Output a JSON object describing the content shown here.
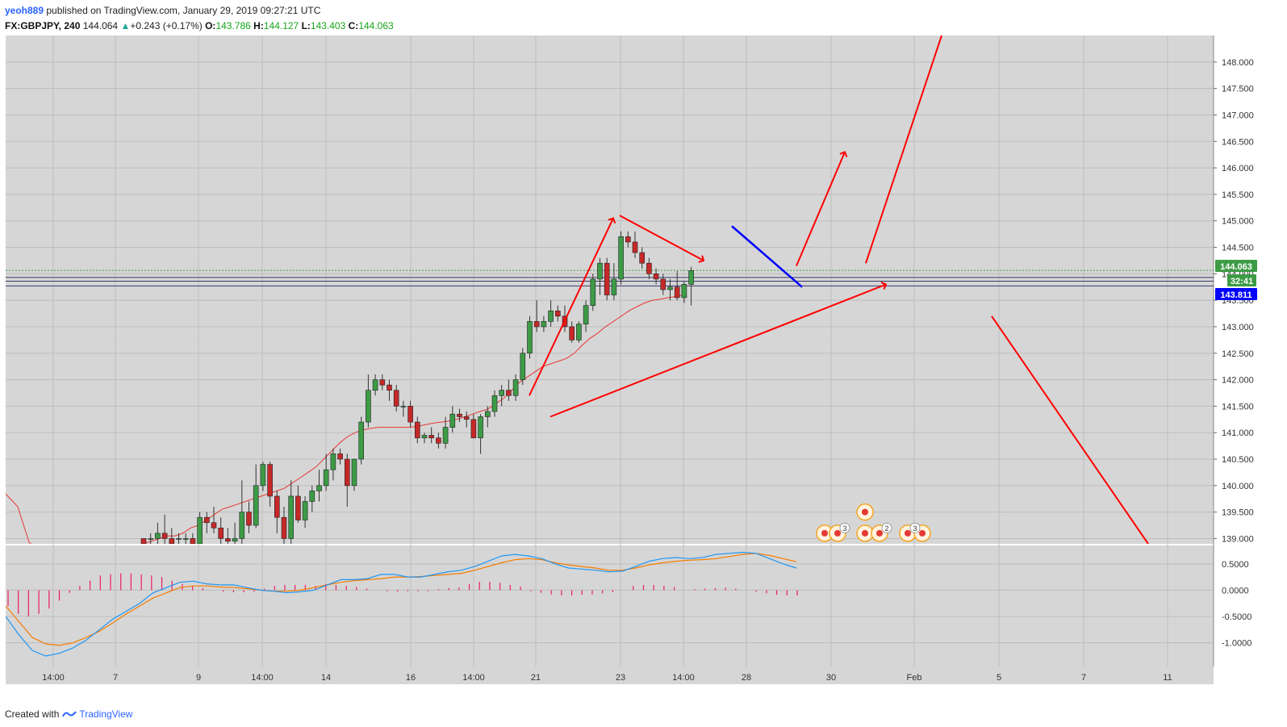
{
  "header": {
    "author": "yeoh889",
    "published_text": "published on TradingView.com, January 29, 2019 09:27:21 UTC",
    "symbol": "FX:GBPJPY, 240",
    "last": "144.064",
    "change": "+0.243 (+0.17%)",
    "o_label": "O:",
    "o_value": "143.786",
    "h_label": "H:",
    "h_value": "144.127",
    "l_label": "L:",
    "l_value": "143.403",
    "c_label": "C:",
    "c_value": "144.063"
  },
  "footer": {
    "created_with": "Created with",
    "brand": "TradingView"
  },
  "colors": {
    "background": "#d6d6d6",
    "grid": "#bdbdbd",
    "up_candle": "#3d9b46",
    "down_candle": "#c62828",
    "annotation_red": "#ff0000",
    "trendline_blue": "#0000ff",
    "ma_line": "#e53935",
    "macd_line": "#2196f3",
    "signal_line": "#f57c00",
    "histogram": "#e91e63",
    "price_badge": "#3d9b46",
    "blue_badge": "#0000ff"
  },
  "chart_data": {
    "type": "candlestick",
    "symbol": "FX:GBPJPY",
    "timeframe": "240",
    "y_ticks": [
      "148.000",
      "147.500",
      "147.000",
      "146.500",
      "146.000",
      "145.500",
      "145.000",
      "144.500",
      "144.000",
      "143.500",
      "143.000",
      "142.500",
      "142.000",
      "141.500",
      "141.000",
      "140.500",
      "140.000",
      "139.500",
      "139.000"
    ],
    "ylim": [
      138.9,
      148.5
    ],
    "x_ticks": [
      "14:00",
      "7",
      "9",
      "14:00",
      "14",
      "16",
      "14:00",
      "21",
      "23",
      "14:00",
      "28",
      "30",
      "Feb",
      "5",
      "7",
      "11"
    ],
    "price_badges": [
      {
        "label": "144.063",
        "value": 144.063
      },
      {
        "label": "32:41",
        "value": 143.85
      },
      {
        "label": "143.811",
        "value": 143.811
      }
    ],
    "horizontal_lines": [
      143.93,
      143.86,
      143.77
    ],
    "current_price_line": 144.063,
    "candles": [
      [
        139.0,
        139.0,
        138.9,
        138.9
      ],
      [
        139.0,
        139.1,
        138.9,
        139.0
      ],
      [
        139.0,
        139.3,
        138.9,
        139.1
      ],
      [
        139.1,
        139.45,
        138.9,
        139.0
      ],
      [
        139.0,
        139.2,
        138.9,
        138.9
      ],
      [
        139.0,
        139.1,
        138.9,
        139.0
      ],
      [
        139.0,
        139.1,
        138.9,
        139.0
      ],
      [
        139.0,
        139.1,
        138.9,
        138.9
      ],
      [
        138.9,
        139.5,
        138.9,
        139.4
      ],
      [
        139.4,
        139.5,
        139.1,
        139.3
      ],
      [
        139.3,
        139.6,
        139.1,
        139.2
      ],
      [
        139.2,
        139.4,
        138.9,
        139.0
      ],
      [
        139.0,
        139.2,
        138.9,
        138.95
      ],
      [
        138.95,
        139.3,
        138.9,
        139.0
      ],
      [
        139.0,
        140.1,
        138.9,
        139.5
      ],
      [
        139.5,
        139.7,
        139.1,
        139.25
      ],
      [
        139.25,
        140.4,
        139.2,
        140.0
      ],
      [
        140.0,
        140.45,
        139.9,
        140.4
      ],
      [
        140.4,
        140.45,
        139.6,
        139.8
      ],
      [
        139.8,
        139.9,
        139.1,
        139.4
      ],
      [
        139.4,
        139.6,
        138.9,
        139.0
      ],
      [
        139.0,
        140.1,
        138.9,
        139.8
      ],
      [
        139.8,
        140.0,
        139.3,
        139.35
      ],
      [
        139.35,
        139.8,
        139.2,
        139.7
      ],
      [
        139.7,
        140.0,
        139.5,
        139.9
      ],
      [
        139.9,
        140.3,
        139.7,
        140.0
      ],
      [
        140.0,
        140.6,
        139.9,
        140.3
      ],
      [
        140.3,
        140.7,
        140.1,
        140.6
      ],
      [
        140.6,
        140.7,
        140.4,
        140.5
      ],
      [
        140.5,
        140.6,
        139.6,
        140.0
      ],
      [
        140.0,
        140.5,
        139.9,
        140.5
      ],
      [
        140.5,
        141.3,
        140.4,
        141.2
      ],
      [
        141.2,
        142.1,
        141.1,
        141.8
      ],
      [
        141.8,
        142.1,
        141.7,
        142.0
      ],
      [
        142.0,
        142.1,
        141.8,
        141.9
      ],
      [
        141.9,
        142.0,
        141.6,
        141.8
      ],
      [
        141.8,
        141.9,
        141.4,
        141.5
      ],
      [
        141.5,
        141.6,
        141.3,
        141.5
      ],
      [
        141.5,
        141.6,
        141.1,
        141.2
      ],
      [
        141.2,
        141.3,
        140.8,
        140.9
      ],
      [
        140.9,
        141.0,
        140.8,
        140.95
      ],
      [
        140.95,
        141.1,
        140.8,
        140.9
      ],
      [
        140.9,
        141.0,
        140.7,
        140.8
      ],
      [
        140.8,
        141.3,
        140.7,
        141.1
      ],
      [
        141.1,
        141.5,
        141.0,
        141.35
      ],
      [
        141.35,
        141.45,
        141.2,
        141.3
      ],
      [
        141.3,
        141.4,
        141.1,
        141.25
      ],
      [
        141.25,
        141.35,
        140.9,
        140.9
      ],
      [
        140.9,
        141.35,
        140.6,
        141.3
      ],
      [
        141.3,
        141.5,
        141.1,
        141.4
      ],
      [
        141.4,
        141.8,
        141.3,
        141.7
      ],
      [
        141.7,
        141.9,
        141.5,
        141.8
      ],
      [
        141.8,
        142.0,
        141.6,
        141.7
      ],
      [
        141.7,
        142.1,
        141.6,
        142.0
      ],
      [
        142.0,
        142.6,
        141.9,
        142.5
      ],
      [
        142.5,
        143.2,
        142.4,
        143.1
      ],
      [
        143.1,
        143.5,
        142.9,
        143.0
      ],
      [
        143.0,
        143.2,
        142.9,
        143.1
      ],
      [
        143.1,
        143.5,
        143.0,
        143.3
      ],
      [
        143.3,
        143.4,
        143.1,
        143.2
      ],
      [
        143.2,
        143.4,
        142.9,
        143.0
      ],
      [
        143.0,
        143.1,
        142.7,
        142.75
      ],
      [
        142.75,
        143.1,
        142.7,
        143.05
      ],
      [
        143.05,
        143.5,
        142.9,
        143.4
      ],
      [
        143.4,
        144.0,
        143.3,
        143.9
      ],
      [
        143.9,
        144.3,
        143.6,
        144.2
      ],
      [
        144.2,
        144.3,
        143.5,
        143.6
      ],
      [
        143.6,
        144.2,
        143.5,
        143.9
      ],
      [
        143.9,
        144.8,
        143.8,
        144.7
      ],
      [
        144.7,
        144.8,
        144.5,
        144.6
      ],
      [
        144.6,
        144.8,
        144.3,
        144.4
      ],
      [
        144.4,
        144.5,
        144.1,
        144.2
      ],
      [
        144.2,
        144.3,
        143.9,
        144.0
      ],
      [
        144.0,
        144.1,
        143.8,
        143.9
      ],
      [
        143.9,
        144.0,
        143.6,
        143.7
      ],
      [
        143.7,
        143.9,
        143.5,
        143.75
      ],
      [
        143.75,
        144.05,
        143.5,
        143.55
      ],
      [
        143.55,
        143.85,
        143.45,
        143.8
      ],
      [
        143.8,
        144.13,
        143.4,
        144.06
      ]
    ],
    "moving_average": [
      138.1,
      138.2,
      138.3,
      138.4,
      138.5,
      138.6,
      138.7,
      138.8,
      138.9,
      138.95,
      139.0,
      139.05,
      139.05,
      139.1,
      139.2,
      139.25,
      139.35,
      139.45,
      139.55,
      139.6,
      139.65,
      139.7,
      139.75,
      139.8,
      139.85,
      139.9,
      139.95,
      140.05,
      140.15,
      140.25,
      140.35,
      140.5,
      140.65,
      140.8,
      140.92,
      141.0,
      141.05,
      141.08,
      141.1,
      141.1,
      141.1,
      141.1,
      141.1,
      141.12,
      141.15,
      141.18,
      141.2,
      141.22,
      141.25,
      141.3,
      141.35,
      141.4,
      141.45,
      141.55,
      141.65,
      141.8,
      141.95,
      142.05,
      142.15,
      142.25,
      142.3,
      142.35,
      142.4,
      142.5,
      142.65,
      142.78,
      142.88,
      143.0,
      143.1,
      143.2,
      143.3,
      143.38,
      143.45,
      143.5,
      143.52,
      143.55,
      143.57,
      143.6
    ],
    "macd": {
      "y_ticks": [
        "0.5000",
        "0.0000",
        "-0.5000",
        "-1.0000"
      ],
      "ylim": [
        -1.45,
        0.85
      ],
      "macd_line": [
        -0.5,
        -0.85,
        -1.15,
        -1.25,
        -1.2,
        -1.1,
        -0.95,
        -0.75,
        -0.55,
        -0.4,
        -0.25,
        -0.05,
        0.05,
        0.15,
        0.17,
        0.12,
        0.1,
        0.1,
        0.05,
        0.0,
        -0.02,
        -0.05,
        -0.03,
        0.0,
        0.1,
        0.2,
        0.2,
        0.22,
        0.3,
        0.3,
        0.25,
        0.25,
        0.3,
        0.35,
        0.38,
        0.45,
        0.55,
        0.65,
        0.68,
        0.65,
        0.6,
        0.5,
        0.42,
        0.4,
        0.38,
        0.35,
        0.36,
        0.45,
        0.55,
        0.6,
        0.62,
        0.6,
        0.62,
        0.68,
        0.7,
        0.72,
        0.7,
        0.6,
        0.5,
        0.42
      ],
      "signal_line": [
        -0.3,
        -0.6,
        -0.9,
        -1.02,
        -1.05,
        -1.0,
        -0.9,
        -0.78,
        -0.62,
        -0.45,
        -0.3,
        -0.15,
        -0.05,
        0.05,
        0.08,
        0.08,
        0.06,
        0.05,
        0.03,
        0.0,
        -0.02,
        -0.02,
        0.0,
        0.05,
        0.1,
        0.15,
        0.18,
        0.2,
        0.22,
        0.25,
        0.25,
        0.26,
        0.28,
        0.3,
        0.32,
        0.38,
        0.45,
        0.52,
        0.58,
        0.6,
        0.58,
        0.52,
        0.48,
        0.45,
        0.42,
        0.38,
        0.38,
        0.42,
        0.48,
        0.52,
        0.55,
        0.57,
        0.58,
        0.6,
        0.64,
        0.68,
        0.7,
        0.66,
        0.6,
        0.54
      ],
      "histogram": [
        -0.3,
        -0.45,
        -0.5,
        -0.45,
        -0.35,
        -0.2,
        -0.05,
        0.08,
        0.18,
        0.28,
        0.3,
        0.32,
        0.32,
        0.3,
        0.28,
        0.25,
        0.18,
        0.12,
        0.08,
        0.04,
        0.0,
        -0.03,
        -0.04,
        -0.04,
        -0.03,
        0.03,
        0.08,
        0.1,
        0.1,
        0.1,
        0.08,
        0.12,
        0.1,
        0.08,
        0.06,
        0.03,
        0.0,
        -0.02,
        -0.03,
        -0.02,
        -0.02,
        -0.02,
        0.02,
        0.04,
        0.05,
        0.12,
        0.16,
        0.16,
        0.14,
        0.1,
        0.07,
        -0.02,
        -0.05,
        -0.08,
        -0.1,
        -0.1,
        -0.09,
        -0.08,
        -0.06,
        -0.04,
        0.0,
        0.08,
        0.1,
        0.1,
        0.08,
        0.06,
        0.0,
        0.02,
        0.03,
        0.04,
        0.05,
        0.03,
        0.0,
        -0.03,
        -0.06,
        -0.09,
        -0.1,
        -0.1
      ]
    },
    "event_badges": [
      {
        "label": "3"
      },
      {
        "label": "2"
      },
      {
        "label": "3"
      }
    ]
  }
}
